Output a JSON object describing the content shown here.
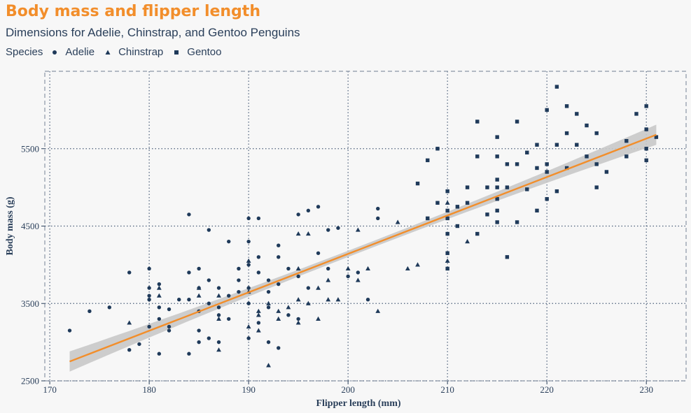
{
  "chart_data": {
    "type": "scatter",
    "title": "Body mass and flipper length",
    "subtitle": "Dimensions for Adelie, Chinstrap, and Gentoo Penguins",
    "xlabel": "Flipper length (mm)",
    "ylabel": "Body mass (g)",
    "xlim": [
      169.5,
      234
    ],
    "ylim": [
      2500,
      6500
    ],
    "xticks": [
      170,
      180,
      190,
      200,
      210,
      220,
      230
    ],
    "yticks": [
      2500,
      3500,
      4500,
      5500
    ],
    "grid": true,
    "legend": {
      "title": "Species",
      "placement": "top-left"
    },
    "colors": {
      "points": "#1f3a5a",
      "fit": "#f28e2b",
      "band": "#c8c8c8",
      "title": "#f28e2b",
      "text": "#2a3f5a"
    },
    "fit_line": {
      "x": [
        172,
        231
      ],
      "y": [
        2750,
        5680
      ]
    },
    "series": [
      {
        "name": "Adelie",
        "marker": "circle",
        "x": [
          172,
          174,
          176,
          178,
          178,
          179,
          180,
          180,
          180,
          180,
          180,
          181,
          181,
          181,
          181,
          182,
          182,
          182,
          183,
          184,
          184,
          184,
          184,
          185,
          185,
          185,
          185,
          185,
          186,
          186,
          186,
          186,
          187,
          187,
          187,
          187,
          188,
          188,
          188,
          189,
          189,
          189,
          190,
          190,
          190,
          190,
          190,
          190,
          191,
          191,
          191,
          191,
          192,
          192,
          192,
          192,
          193,
          193,
          193,
          193,
          194,
          194,
          195,
          195,
          195,
          196,
          196,
          197,
          197,
          198,
          198,
          199,
          200,
          201,
          202,
          203,
          203
        ],
        "y": [
          3150,
          3400,
          3450,
          3900,
          2900,
          2975,
          3950,
          3700,
          3600,
          3550,
          3200,
          3750,
          3450,
          3300,
          2850,
          3425,
          3200,
          3150,
          3550,
          4650,
          3900,
          3550,
          2850,
          3950,
          3700,
          3400,
          3150,
          3000,
          4450,
          3800,
          3500,
          3050,
          3700,
          3450,
          3350,
          3000,
          4300,
          3600,
          3300,
          3950,
          3800,
          3650,
          4600,
          4300,
          4000,
          3700,
          3500,
          3050,
          4600,
          4100,
          3900,
          3250,
          3800,
          3650,
          3450,
          3000,
          4250,
          4100,
          3750,
          2925,
          3950,
          3350,
          4650,
          3850,
          3300,
          4700,
          3700,
          4750,
          4150,
          4450,
          3950,
          4475,
          3850,
          3900,
          3550,
          4725,
          4600
        ]
      },
      {
        "name": "Chinstrap",
        "marker": "triangle",
        "x": [
          178,
          181,
          181,
          185,
          185,
          187,
          187,
          187,
          190,
          190,
          190,
          191,
          191,
          191,
          192,
          192,
          193,
          193,
          194,
          195,
          195,
          195,
          195,
          196,
          196,
          197,
          197,
          198,
          198,
          199,
          200,
          201,
          201,
          202,
          203,
          205,
          206,
          207,
          210,
          210,
          212
        ],
        "y": [
          3250,
          3700,
          3600,
          3700,
          3600,
          3600,
          3300,
          2900,
          4050,
          3650,
          3200,
          3400,
          3350,
          3150,
          3500,
          2700,
          3300,
          3400,
          3450,
          4400,
          3950,
          3550,
          3250,
          4400,
          3500,
          3700,
          3300,
          3800,
          3550,
          3550,
          3950,
          3800,
          4450,
          3950,
          3400,
          4550,
          3950,
          4000,
          4050,
          4800,
          4300
        ]
      },
      {
        "name": "Gentoo",
        "marker": "square",
        "x": [
          207,
          208,
          208,
          209,
          209,
          210,
          210,
          210,
          210,
          210,
          210,
          211,
          211,
          212,
          212,
          213,
          213,
          213,
          214,
          214,
          215,
          215,
          215,
          215,
          215,
          215,
          215,
          216,
          216,
          216,
          217,
          217,
          217,
          218,
          218,
          219,
          219,
          219,
          220,
          220,
          220,
          220,
          221,
          221,
          221,
          222,
          222,
          222,
          223,
          223,
          224,
          224,
          225,
          225,
          225,
          226,
          228,
          228,
          229,
          230,
          230,
          230,
          230,
          231
        ],
        "y": [
          5050,
          5350,
          4600,
          5500,
          4800,
          4950,
          4700,
          4600,
          4400,
          4150,
          3950,
          4750,
          4500,
          5000,
          4800,
          5850,
          5400,
          4400,
          5000,
          4650,
          5650,
          5400,
          5100,
          5000,
          4850,
          4700,
          4550,
          5300,
          5000,
          4100,
          5850,
          5300,
          4550,
          5450,
          4975,
          5550,
          5250,
          4700,
          6000,
          5300,
          5200,
          4850,
          6300,
          5550,
          4950,
          6050,
          5700,
          5250,
          5950,
          5550,
          5800,
          5400,
          5700,
          5300,
          5000,
          5200,
          5600,
          5400,
          5950,
          6050,
          5750,
          5500,
          5350,
          5650
        ]
      }
    ]
  }
}
